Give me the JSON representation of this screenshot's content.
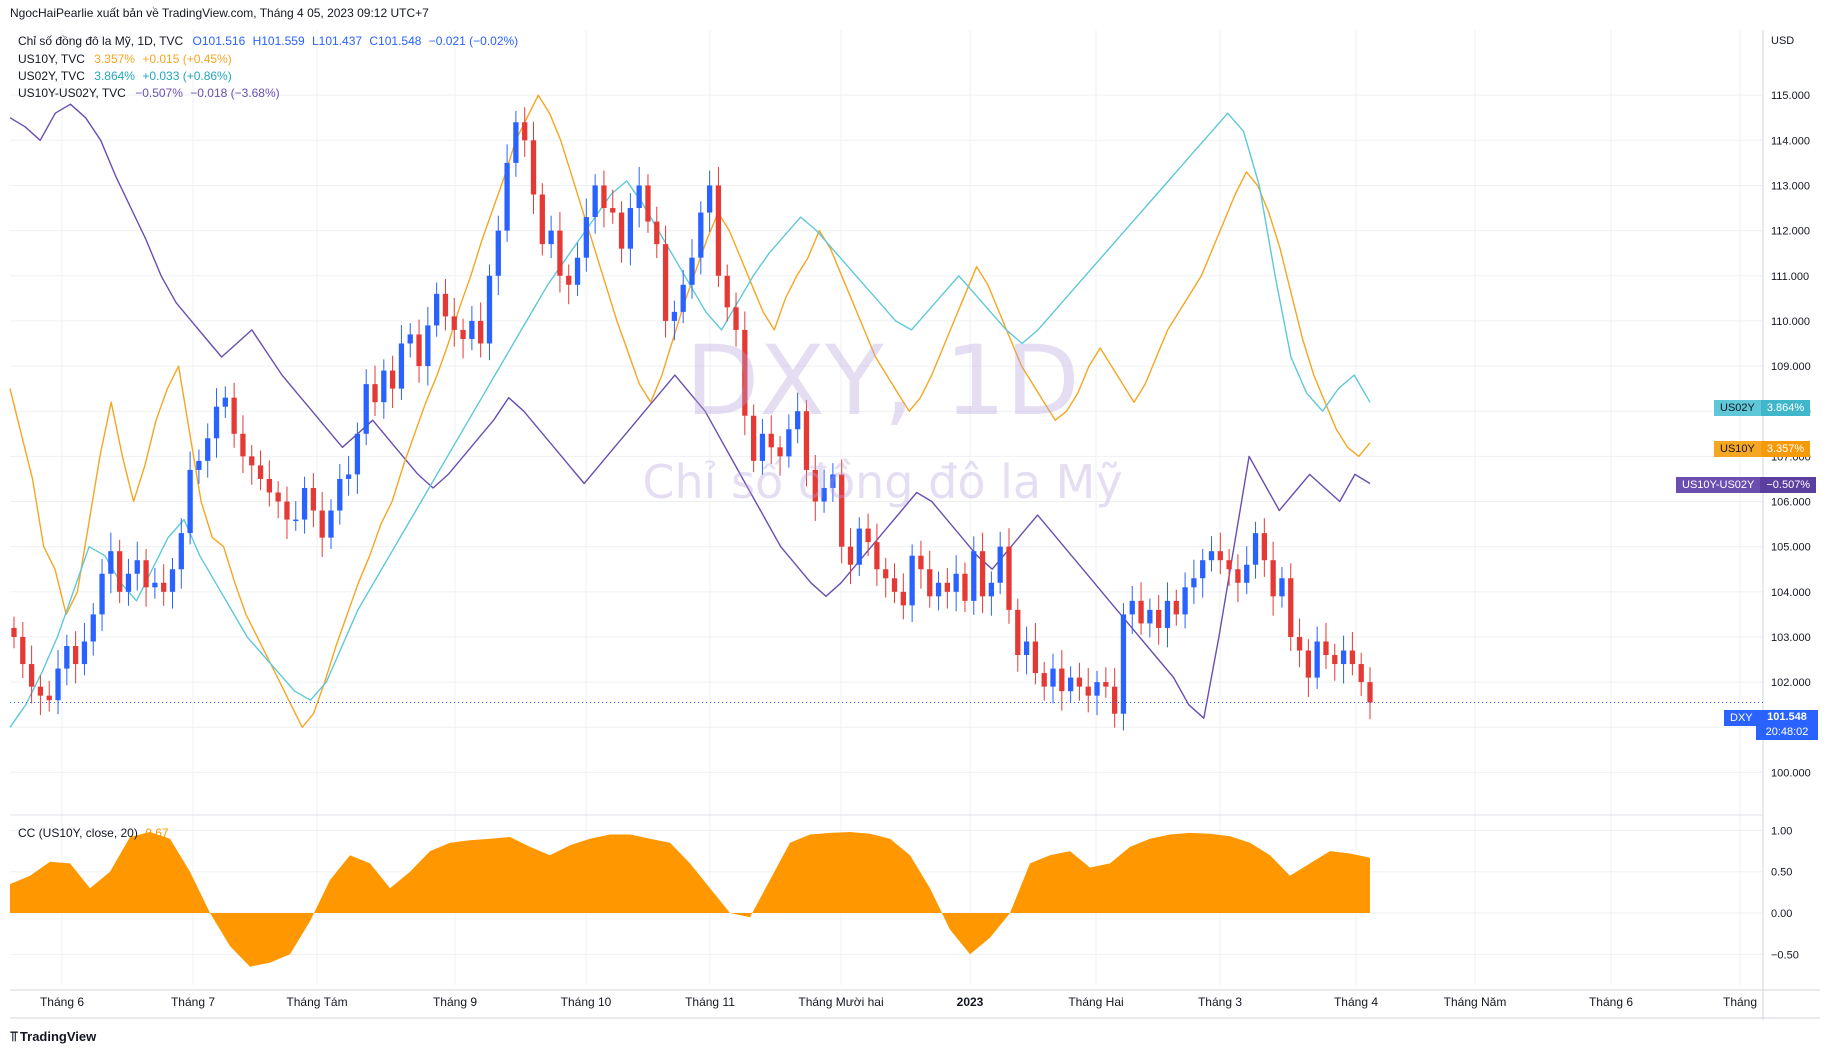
{
  "header": {
    "publisher": "NgocHaiPearlie xuất bản về TradingView.com, Tháng 4 05, 2023 09:12 UTC+7"
  },
  "legend": {
    "dxy": {
      "name": "Chỉ số đồng đô la Mỹ, 1D, TVC",
      "o": "O101.516",
      "h": "H101.559",
      "l": "L101.437",
      "c": "C101.548",
      "chg": "−0.021 (−0.02%)"
    },
    "us10y": {
      "name": "US10Y, TVC",
      "last": "3.357%",
      "chg": "+0.015 (+0.45%)"
    },
    "us02y": {
      "name": "US02Y, TVC",
      "last": "3.864%",
      "chg": "+0.033 (+0.86%)"
    },
    "spread": {
      "name": "US10Y-US02Y, TVC",
      "last": "−0.507%",
      "chg": "−0.018 (−3.68%)"
    }
  },
  "watermark": {
    "symbol": "DXY, 1D",
    "desc": "Chỉ số đồng đô la Mỹ"
  },
  "price_scale": {
    "currency": "USD",
    "ticks": [
      "115.000",
      "114.000",
      "113.000",
      "112.000",
      "111.000",
      "110.000",
      "109.000",
      "108.000",
      "107.000",
      "106.000",
      "105.000",
      "104.000",
      "103.000",
      "102.000",
      "101.000",
      "100.000"
    ]
  },
  "tags": {
    "us02y": {
      "label": "US02Y",
      "value": "3.864%"
    },
    "us10y": {
      "label": "US10Y",
      "value": "3.357%"
    },
    "spread": {
      "label": "US10Y-US02Y",
      "value": "−0.507%"
    },
    "dxy": {
      "label": "DXY",
      "value": "101.548",
      "countdown": "20:48:02"
    }
  },
  "indicator": {
    "label": "CC (US10Y, close, 20)",
    "value": "0.67",
    "ticks": [
      "1.00",
      "0.50",
      "0.00",
      "−0.50"
    ]
  },
  "time_axis": [
    "Tháng 6",
    "Tháng 7",
    "Tháng Tám",
    "Tháng 9",
    "Tháng 10",
    "Tháng 11",
    "Tháng Mười hai",
    "2023",
    "Tháng Hai",
    "Tháng 3",
    "Tháng 4",
    "Tháng Năm",
    "Tháng 6",
    "Tháng"
  ],
  "footer": {
    "brand": "TradingView"
  },
  "colors": {
    "up": "#2962ff",
    "down": "#e53935",
    "us10y": "#f5a623",
    "us02y": "#5ec8d8",
    "spread": "#6a4fb0",
    "cc_fill": "#ff9800",
    "grid": "#eef0f4",
    "axis_text": "#131722"
  },
  "chart_data": {
    "type": "candlestick+line",
    "dxy": {
      "x_start": "Tháng 6",
      "ylim": [
        99.5,
        116.0
      ],
      "closes": [
        103.0,
        102.4,
        101.9,
        101.7,
        101.6,
        102.3,
        102.8,
        102.4,
        102.9,
        103.5,
        104.4,
        104.9,
        104.0,
        104.4,
        104.7,
        104.1,
        104.2,
        104.0,
        104.5,
        105.3,
        106.7,
        106.9,
        107.4,
        108.1,
        108.3,
        107.5,
        107.0,
        106.8,
        106.5,
        106.2,
        106.0,
        105.6,
        105.6,
        106.3,
        105.8,
        105.2,
        105.8,
        106.5,
        106.6,
        107.5,
        108.6,
        108.2,
        108.9,
        108.5,
        109.5,
        109.7,
        109.0,
        109.9,
        110.6,
        110.1,
        109.8,
        109.6,
        110.0,
        109.5,
        111.0,
        112.0,
        113.5,
        114.4,
        114.0,
        112.8,
        111.7,
        112.0,
        111.0,
        110.8,
        111.4,
        112.3,
        113.0,
        112.5,
        112.4,
        111.6,
        112.5,
        113.0,
        112.2,
        111.7,
        110.0,
        110.2,
        110.8,
        111.4,
        112.4,
        113.0,
        111.0,
        110.3,
        109.8,
        107.9,
        106.9,
        107.5,
        107.2,
        107.0,
        107.6,
        108.0,
        106.7,
        106.0,
        106.3,
        106.6,
        105.0,
        104.6,
        105.4,
        105.1,
        104.5,
        104.3,
        104.0,
        103.7,
        104.8,
        104.5,
        103.9,
        104.2,
        104.0,
        104.4,
        103.8,
        104.9,
        103.9,
        104.2,
        105.0,
        103.6,
        102.6,
        102.9,
        102.2,
        101.9,
        102.3,
        101.8,
        102.1,
        101.9,
        101.7,
        102.0,
        101.9,
        101.3,
        103.5,
        103.8,
        103.3,
        103.6,
        103.2,
        103.8,
        103.5,
        104.1,
        104.3,
        104.7,
        104.9,
        104.7,
        104.5,
        104.2,
        104.6,
        105.3,
        104.7,
        103.9,
        104.3,
        103.0,
        102.7,
        102.1,
        102.9,
        102.6,
        102.4,
        102.7,
        102.4,
        102.0,
        101.548
      ]
    },
    "us10y_path": [
      108.5,
      107.5,
      106.5,
      105.0,
      104.5,
      103.5,
      104.0,
      105.5,
      107.0,
      108.2,
      107.0,
      106.0,
      106.8,
      107.8,
      108.5,
      109.0,
      107.5,
      106.0,
      105.2,
      105.0,
      104.2,
      103.5,
      103.0,
      102.5,
      102.0,
      101.5,
      101.0,
      101.3,
      102.0,
      102.8,
      103.5,
      104.2,
      104.8,
      105.5,
      106.0,
      106.8,
      107.5,
      108.2,
      108.8,
      109.5,
      110.3,
      111.0,
      111.8,
      112.5,
      113.2,
      114.0,
      114.5,
      115.0,
      114.6,
      114.0,
      113.2,
      112.4,
      111.6,
      110.8,
      110.0,
      109.3,
      108.6,
      108.2,
      108.8,
      109.6,
      110.4,
      111.1,
      111.8,
      112.4,
      112.0,
      111.4,
      110.8,
      110.2,
      109.8,
      110.5,
      111.0,
      111.4,
      112.0,
      111.6,
      111.0,
      110.4,
      109.8,
      109.2,
      108.8,
      108.4,
      108.0,
      108.3,
      108.8,
      109.4,
      110.0,
      110.6,
      111.2,
      110.8,
      110.2,
      109.6,
      109.0,
      108.6,
      108.2,
      107.8,
      108.0,
      108.4,
      109.0,
      109.4,
      109.0,
      108.6,
      108.2,
      108.6,
      109.2,
      109.8,
      110.2,
      110.6,
      111.0,
      111.6,
      112.2,
      112.8,
      113.3,
      113.0,
      112.4,
      111.6,
      110.6,
      109.6,
      108.8,
      108.2,
      107.6,
      107.2,
      107.0,
      107.3
    ],
    "us02y_path": [
      101.0,
      101.5,
      102.2,
      103.0,
      104.0,
      105.0,
      104.8,
      104.2,
      103.8,
      104.5,
      105.2,
      105.6,
      104.8,
      104.2,
      103.6,
      103.0,
      102.6,
      102.2,
      101.8,
      101.6,
      102.0,
      102.8,
      103.6,
      104.2,
      104.8,
      105.4,
      106.0,
      106.6,
      107.2,
      107.8,
      108.4,
      109.0,
      109.6,
      110.2,
      110.8,
      111.3,
      111.8,
      112.3,
      112.8,
      113.1,
      112.6,
      112.0,
      111.4,
      110.8,
      110.2,
      109.8,
      110.4,
      111.0,
      111.5,
      111.9,
      112.3,
      112.0,
      111.6,
      111.2,
      110.8,
      110.4,
      110.0,
      109.8,
      110.2,
      110.6,
      111.0,
      110.6,
      110.2,
      109.8,
      109.5,
      109.8,
      110.2,
      110.6,
      111.0,
      111.4,
      111.8,
      112.2,
      112.6,
      113.0,
      113.4,
      113.8,
      114.2,
      114.6,
      114.2,
      113.0,
      111.0,
      109.2,
      108.4,
      108.0,
      108.5,
      108.8,
      108.2
    ],
    "spread_path": [
      114.5,
      114.3,
      114.0,
      114.6,
      114.8,
      114.5,
      114.0,
      113.2,
      112.5,
      111.8,
      111.0,
      110.4,
      110.0,
      109.6,
      109.2,
      109.5,
      109.8,
      109.3,
      108.8,
      108.4,
      108.0,
      107.6,
      107.2,
      107.5,
      107.8,
      107.4,
      107.0,
      106.6,
      106.3,
      106.6,
      107.0,
      107.4,
      107.8,
      108.3,
      108.0,
      107.6,
      107.2,
      106.8,
      106.4,
      106.8,
      107.2,
      107.6,
      108.0,
      108.4,
      108.8,
      108.4,
      108.0,
      107.4,
      106.8,
      106.2,
      105.6,
      105.0,
      104.6,
      104.2,
      103.9,
      104.2,
      104.6,
      105.0,
      105.4,
      105.8,
      106.2,
      106.0,
      105.6,
      105.2,
      104.8,
      104.5,
      104.9,
      105.3,
      105.7,
      105.3,
      104.9,
      104.5,
      104.1,
      103.7,
      103.3,
      102.9,
      102.5,
      102.1,
      101.5,
      101.2,
      103.0,
      105.0,
      107.0,
      106.4,
      105.8,
      106.2,
      106.6,
      106.3,
      106.0,
      106.6,
      106.4
    ]
  }
}
